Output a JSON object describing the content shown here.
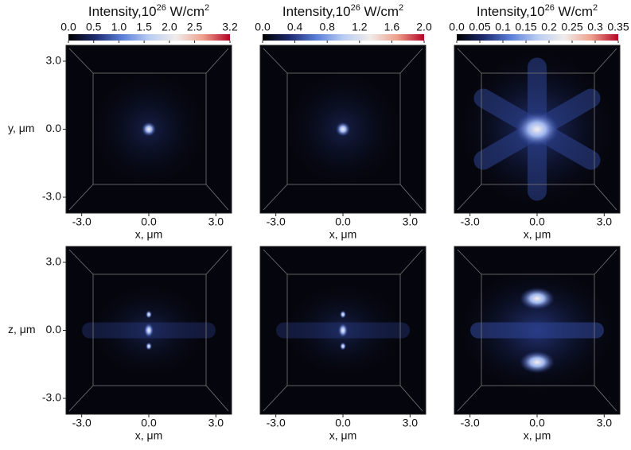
{
  "chart_data": [
    {
      "type": "heatmap",
      "xlabel": "x, μm",
      "ylabel": "y, μm",
      "xlim": [
        -3.7,
        3.7
      ],
      "ylim": [
        -3.7,
        3.7
      ],
      "xticks": [
        {
          "value": -3,
          "label": "-3.0"
        },
        {
          "value": 0,
          "label": "0.0"
        },
        {
          "value": 3,
          "label": "3.0"
        }
      ],
      "yticks": [
        {
          "value": -3,
          "label": "-3.0"
        },
        {
          "value": 0,
          "label": "0.0"
        },
        {
          "value": 3,
          "label": "3.0"
        }
      ],
      "colorbar": {
        "title": "Intensity,10",
        "title_exp": "26",
        "title_unit": " W/cm",
        "title_unit_exp": "2",
        "lim": [
          0,
          3.2
        ],
        "ticks": [
          {
            "value": 0,
            "label": "0.0"
          },
          {
            "value": 0.5,
            "label": "0.5"
          },
          {
            "value": 1,
            "label": "1.0"
          },
          {
            "value": 1.5,
            "label": "1.5"
          },
          {
            "value": 2,
            "label": "2.0"
          },
          {
            "value": 2.5,
            "label": "2.5"
          },
          3.2
        ],
        "colormap": [
          "#000000",
          "#1d2a6e",
          "#5b7fd8",
          "#b9cdf2",
          "#f0ecea",
          "#eea08c",
          "#b40426"
        ]
      }
    },
    {
      "type": "heatmap",
      "xlabel": "x, μm",
      "xlim": [
        -3.7,
        3.7
      ],
      "ylim": [
        -3.7,
        3.7
      ],
      "xticks": [
        {
          "value": -3,
          "label": "-3.0"
        },
        {
          "value": 0,
          "label": "0.0"
        },
        {
          "value": 3,
          "label": "3.0"
        }
      ],
      "colorbar": {
        "title": "Intensity,10",
        "title_exp": "26",
        "title_unit": " W/cm",
        "title_unit_exp": "2",
        "lim": [
          0,
          2.0
        ],
        "ticks": [
          {
            "value": 0,
            "label": "0.0"
          },
          0.4,
          0.8,
          1.2,
          1.6,
          {
            "value": 2,
            "label": "2.0"
          }
        ],
        "colormap": [
          "#000000",
          "#1d2a6e",
          "#5b7fd8",
          "#b9cdf2",
          "#f0ecea",
          "#eea08c",
          "#b40426"
        ]
      }
    },
    {
      "type": "heatmap",
      "xlabel": "x, μm",
      "xlim": [
        -3.7,
        3.7
      ],
      "ylim": [
        -3.7,
        3.7
      ],
      "xticks": [
        {
          "value": -3,
          "label": "-3.0"
        },
        {
          "value": 0,
          "label": "0.0"
        },
        {
          "value": 3,
          "label": "3.0"
        }
      ],
      "colorbar": {
        "title": "Intensity,10",
        "title_exp": "26",
        "title_unit": " W/cm",
        "title_unit_exp": "2",
        "lim": [
          0,
          0.35
        ],
        "ticks": [
          {
            "value": 0,
            "label": "0.0"
          },
          0.05,
          0.1,
          0.15,
          0.2,
          0.25,
          0.3,
          0.35
        ],
        "colormap": [
          "#000000",
          "#1d2a6e",
          "#5b7fd8",
          "#b9cdf2",
          "#f0ecea",
          "#eea08c",
          "#b40426"
        ]
      }
    },
    {
      "type": "heatmap",
      "xlabel": "x, μm",
      "ylabel": "z, μm",
      "xlim": [
        -3.7,
        3.7
      ],
      "ylim": [
        -3.7,
        3.7
      ],
      "xticks": [
        {
          "value": -3,
          "label": "-3.0"
        },
        {
          "value": 0,
          "label": "0.0"
        },
        {
          "value": 3,
          "label": "3.0"
        }
      ],
      "yticks": [
        {
          "value": -3,
          "label": "-3.0"
        },
        {
          "value": 0,
          "label": "0.0"
        },
        {
          "value": 3,
          "label": "3.0"
        }
      ]
    },
    {
      "type": "heatmap",
      "xlabel": "x, μm",
      "xlim": [
        -3.7,
        3.7
      ],
      "ylim": [
        -3.7,
        3.7
      ],
      "xticks": [
        {
          "value": -3,
          "label": "-3.0"
        },
        {
          "value": 0,
          "label": "0.0"
        },
        {
          "value": 3,
          "label": "3.0"
        }
      ]
    },
    {
      "type": "heatmap",
      "xlabel": "x, μm",
      "xlim": [
        -3.7,
        3.7
      ],
      "ylim": [
        -3.7,
        3.7
      ],
      "xticks": [
        {
          "value": -3,
          "label": "-3.0"
        },
        {
          "value": 0,
          "label": "0.0"
        },
        {
          "value": 3,
          "label": "3.0"
        }
      ]
    }
  ]
}
